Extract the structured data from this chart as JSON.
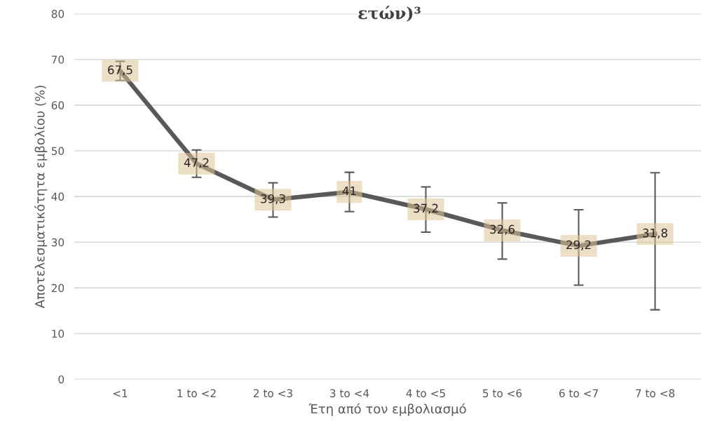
{
  "chart_data": {
    "type": "line",
    "title": "ετών)³",
    "xlabel": "Έτη από τον εμβολιασμό",
    "ylabel": "Αποτελεσματικότητα εμβολίου (%)",
    "categories": [
      "<1",
      "1 to <2",
      "2 to <3",
      "3 to <4",
      "4 to <5",
      "5 to <6",
      "6 to <7",
      "7 to <8"
    ],
    "series": [
      {
        "color": "#595959",
        "values": [
          67.5,
          47.2,
          39.3,
          41,
          37.2,
          32.6,
          29.2,
          31.8
        ],
        "errors": [
          [
            65.4,
            69.6
          ],
          [
            44.2,
            50.2
          ],
          [
            35.5,
            43.0
          ],
          [
            36.7,
            45.3
          ],
          [
            32.2,
            42.1
          ],
          [
            26.3,
            38.6
          ],
          [
            20.6,
            37.1
          ],
          [
            15.2,
            45.2
          ]
        ]
      }
    ],
    "value_labels": [
      "67,5",
      "47,2",
      "39,3",
      "41",
      "37,2",
      "32,6",
      "29,2",
      "31,8"
    ],
    "ylim": [
      0,
      80
    ],
    "yticks": [
      0,
      10,
      20,
      30,
      40,
      50,
      60,
      70,
      80
    ],
    "grid": "y",
    "legend": false,
    "marker": "none",
    "line_style": "solid"
  }
}
